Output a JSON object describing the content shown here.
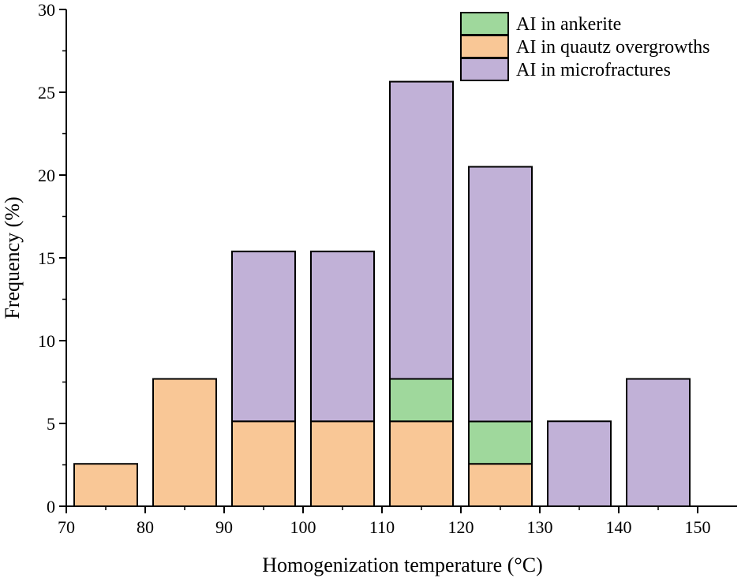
{
  "chart_data": {
    "type": "bar",
    "stacked": true,
    "x": [
      75,
      85,
      95,
      105,
      115,
      125,
      135,
      145
    ],
    "bin_width": 8,
    "xlim": [
      70,
      155
    ],
    "ylim": [
      0,
      30
    ],
    "xticks": [
      70,
      80,
      90,
      100,
      110,
      120,
      130,
      140,
      150
    ],
    "yticks": [
      0,
      5,
      10,
      15,
      20,
      25,
      30
    ],
    "xlabel": "Homogenization temperature (°C)",
    "ylabel": "Frequency (%)",
    "legend_position": "top-right",
    "grid": false,
    "series": [
      {
        "name": "AI in quautz overgrowths",
        "color": "#f9c796",
        "values": [
          2.56,
          7.69,
          5.13,
          5.13,
          5.13,
          2.56,
          0,
          0
        ]
      },
      {
        "name": "AI in ankerite",
        "color": "#9fd89c",
        "values": [
          0,
          0,
          0,
          0,
          2.56,
          2.56,
          0,
          0
        ]
      },
      {
        "name": "AI in microfractures",
        "color": "#c1b1d7",
        "values": [
          0,
          0,
          10.26,
          10.26,
          17.95,
          15.38,
          5.13,
          7.69
        ]
      }
    ],
    "legend_order": [
      "AI in ankerite",
      "AI in quautz overgrowths",
      "AI in microfractures"
    ]
  }
}
